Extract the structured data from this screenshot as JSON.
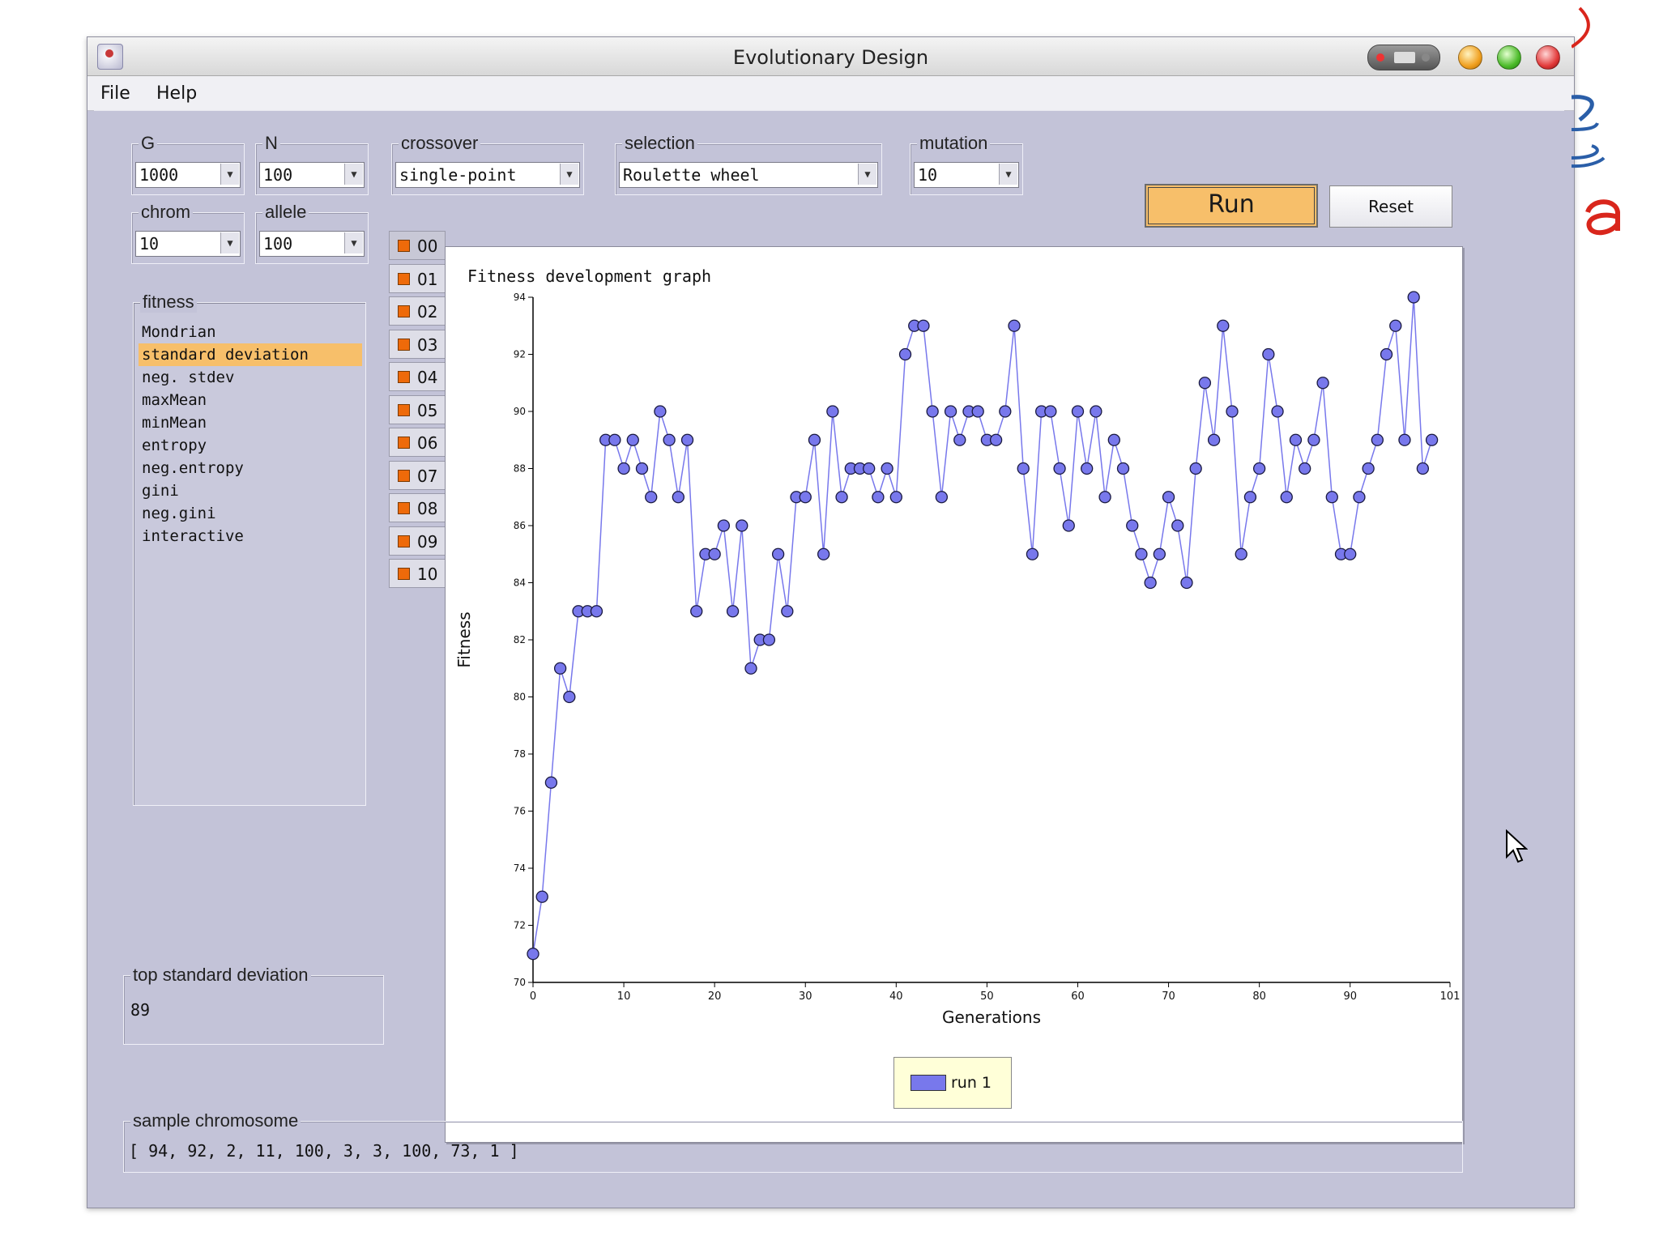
{
  "window": {
    "title": "Evolutionary Design"
  },
  "menu": {
    "file": "File",
    "help": "Help"
  },
  "params": {
    "g": {
      "label": "G",
      "value": "1000"
    },
    "n": {
      "label": "N",
      "value": "100"
    },
    "crossover": {
      "label": "crossover",
      "value": "single-point"
    },
    "selection": {
      "label": "selection",
      "value": "Roulette wheel"
    },
    "mutation": {
      "label": "mutation",
      "value": "10"
    },
    "chrom": {
      "label": "chrom",
      "value": "10"
    },
    "allele": {
      "label": "allele",
      "value": "100"
    }
  },
  "buttons": {
    "run": "Run",
    "reset": "Reset"
  },
  "fitness": {
    "label": "fitness",
    "items": [
      "Mondrian",
      "standard deviation",
      "neg. stdev",
      "maxMean",
      "minMean",
      "entropy",
      "neg.entropy",
      "gini",
      "neg.gini",
      "interactive"
    ],
    "selected": "standard deviation"
  },
  "runs": [
    "00",
    "01",
    "02",
    "03",
    "04",
    "05",
    "06",
    "07",
    "08",
    "09",
    "10"
  ],
  "top": {
    "label": "top standard deviation",
    "value": "89"
  },
  "sample": {
    "label": "sample chromosome",
    "value": "[ 94, 92, 2, 11, 100, 3, 3, 100, 73, 1 ]"
  },
  "colors": {
    "accent": "#f7bf6a",
    "series": "#7878ec",
    "panel": "#c3c3d8",
    "run_marker": "#ee6a0a"
  },
  "chart_data": {
    "type": "line",
    "title": "Fitness development graph",
    "xlabel": "Generations",
    "ylabel": "Fitness",
    "xlim": [
      0,
      101
    ],
    "ylim": [
      70,
      94
    ],
    "x_ticks": [
      0,
      10,
      20,
      30,
      40,
      50,
      60,
      70,
      80,
      90,
      101
    ],
    "y_ticks": [
      70,
      72,
      74,
      76,
      78,
      80,
      82,
      84,
      86,
      88,
      90,
      92,
      94
    ],
    "legend": "bottom-center",
    "series": [
      {
        "name": "run 1",
        "values": [
          71,
          73,
          77,
          81,
          80,
          83,
          83,
          83,
          89,
          89,
          88,
          89,
          88,
          87,
          90,
          89,
          87,
          89,
          83,
          85,
          85,
          86,
          83,
          86,
          81,
          82,
          82,
          85,
          83,
          87,
          87,
          89,
          85,
          90,
          87,
          88,
          88,
          88,
          87,
          88,
          87,
          92,
          93,
          93,
          90,
          87,
          90,
          89,
          90,
          90,
          89,
          89,
          90,
          93,
          88,
          85,
          90,
          90,
          88,
          86,
          90,
          88,
          90,
          87,
          89,
          88,
          86,
          85,
          84,
          85,
          87,
          86,
          84,
          88,
          91,
          89,
          93,
          90,
          85,
          87,
          88,
          92,
          90,
          87,
          89,
          88,
          89,
          91,
          87,
          85,
          85,
          87,
          88,
          89,
          92,
          93,
          89,
          94,
          88,
          89
        ]
      }
    ]
  }
}
